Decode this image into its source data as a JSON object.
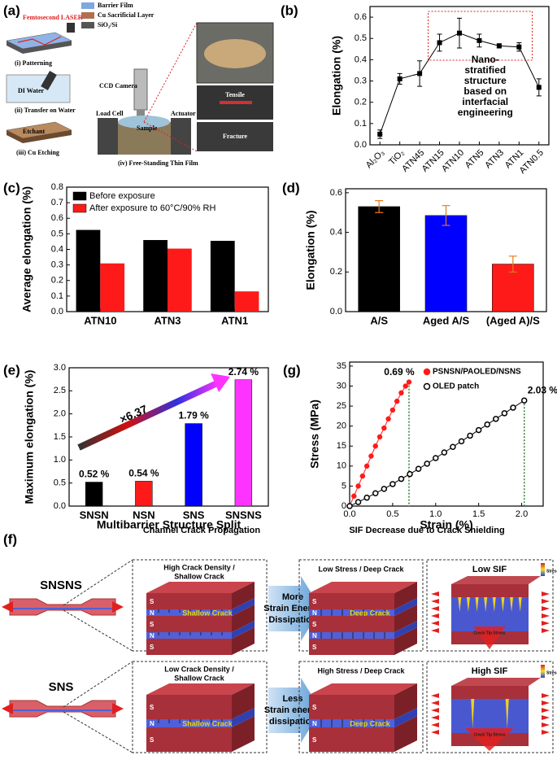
{
  "figure_a": {
    "label": "(a)",
    "laser": "Femtosecond LASER",
    "steps": [
      "(i) Patterning",
      "(ii) Transfer on Water",
      "(iii) Cu Etching",
      "(iv) Free-Standing Thin Film"
    ],
    "di_water": "DI Water",
    "etchant": "Etchant",
    "legend": [
      "Barrier Film",
      "Cu Sacrificial Layer",
      "SiO₂/Si"
    ],
    "parts": [
      "CCD Camera",
      "Load Cell",
      "Actuator",
      "Sample"
    ],
    "photo_labels": [
      "Tensile",
      "Fracture"
    ]
  },
  "chart_data": [
    {
      "type": "line",
      "label": "(b)",
      "y_label": "Elongation (%)",
      "categories": [
        "Al₂O₃",
        "TiO₂",
        "ATN45",
        "ATN15",
        "ATN10",
        "ATN5",
        "ATN3",
        "ATN1",
        "ATN0.5"
      ],
      "values": [
        0.05,
        0.31,
        0.335,
        0.48,
        0.525,
        0.49,
        0.465,
        0.46,
        0.27
      ],
      "errors": [
        0.02,
        0.025,
        0.06,
        0.04,
        0.07,
        0.03,
        0.01,
        0.02,
        0.04
      ],
      "color": "#000000",
      "ylim": [
        0,
        0.65
      ],
      "yticks": [
        {
          "value": 0,
          "label": "0.0"
        },
        0.1,
        0.2,
        0.3,
        0.4,
        0.5,
        0.6
      ],
      "annotation": [
        "Nano-",
        "stratified",
        "structure",
        "based on",
        "interfacial",
        "engineering"
      ]
    },
    {
      "type": "bar",
      "label": "(c)",
      "y_label": "Average elongation (%)",
      "categories": [
        "ATN10",
        "ATN3",
        "ATN1"
      ],
      "series": [
        {
          "name": "Before exposure",
          "color": "#000000",
          "values": [
            0.525,
            0.46,
            0.455
          ]
        },
        {
          "name": "After exposure to 60°C/90% RH",
          "color": "#ff1a1a",
          "values": [
            0.31,
            0.405,
            0.13
          ]
        }
      ],
      "legend": "upper left",
      "ylim": [
        0,
        0.8
      ],
      "yticks": [
        {
          "value": 0,
          "label": "0.0"
        },
        0.1,
        0.2,
        0.3,
        0.4,
        0.5,
        0.6,
        0.7,
        0.8
      ]
    },
    {
      "type": "bar",
      "label": "(d)",
      "y_label": "Elongation (%)",
      "categories": [
        "A/S",
        "Aged A/S",
        "(Aged A)/S"
      ],
      "values": [
        0.53,
        0.485,
        0.24
      ],
      "errors": [
        0.03,
        0.05,
        0.04
      ],
      "colors": [
        "#000000",
        "#0000ff",
        "#ff1a1a"
      ],
      "error_color": "#e07b20",
      "ylim": [
        0,
        0.62
      ],
      "yticks": [
        {
          "value": 0,
          "label": "0.0"
        },
        0.2,
        0.4,
        0.6
      ]
    },
    {
      "type": "bar",
      "label": "(e)",
      "y_label": "Maximum elongation (%)",
      "x_label": "Multibarrier Structure Split",
      "categories": [
        "SNSN",
        "NSN",
        "SNS",
        "SNSNS"
      ],
      "values": [
        0.52,
        0.54,
        1.79,
        2.74
      ],
      "value_labels": [
        "0.52 %",
        "0.54 %",
        "1.79 %",
        "2.74 %"
      ],
      "colors": [
        "#000000",
        "#ff1a1a",
        "#0000ff",
        "#ff33ff"
      ],
      "ylim": [
        0,
        3.0
      ],
      "yticks": [
        {
          "value": 0,
          "label": "0.0"
        },
        0.5,
        {
          "value": 1,
          "label": "1.0"
        },
        1.5,
        {
          "value": 2,
          "label": "2.0"
        },
        2.5,
        {
          "value": 3,
          "label": "3.0"
        }
      ],
      "annotation": "×6.37"
    },
    {
      "type": "scatter",
      "label": "(g)",
      "y_label": "Stress (MPa)",
      "x_label": "Strain (%)",
      "series": [
        {
          "name": "PSNSN/PAOLED/NSNS",
          "color": "#ff1a1a",
          "x": [
            0,
            0.05,
            0.1,
            0.15,
            0.2,
            0.25,
            0.3,
            0.35,
            0.4,
            0.45,
            0.5,
            0.55,
            0.6,
            0.65,
            0.69
          ],
          "values": [
            0,
            2.5,
            5,
            7.5,
            10,
            12.5,
            15,
            17.3,
            19.5,
            21.8,
            24,
            26.2,
            28.3,
            30,
            31
          ]
        },
        {
          "name": "OLED patch",
          "color": "#000000",
          "x": [
            0,
            0.1,
            0.2,
            0.3,
            0.4,
            0.5,
            0.6,
            0.7,
            0.8,
            0.9,
            1.0,
            1.1,
            1.2,
            1.3,
            1.4,
            1.5,
            1.6,
            1.7,
            1.8,
            1.9,
            2.03
          ],
          "values": [
            0,
            1.0,
            2.1,
            3.2,
            4.3,
            5.5,
            6.8,
            8.0,
            9.3,
            10.6,
            12.0,
            13.4,
            14.8,
            16.2,
            17.6,
            19.0,
            20.4,
            21.8,
            23.2,
            24.6,
            26.4
          ]
        }
      ],
      "point_labels": [
        "0.69 %",
        "2.03 %"
      ],
      "drop_color": "#2e7d32",
      "legend": "upper left",
      "xlim": [
        0,
        2.25
      ],
      "ylim": [
        0,
        36
      ],
      "xticks": [
        {
          "value": 0,
          "label": "0.0"
        },
        0.5,
        {
          "value": 1,
          "label": "1.0"
        },
        1.5,
        {
          "value": 2,
          "label": "2.0"
        }
      ],
      "yticks": [
        0,
        5,
        10,
        15,
        20,
        25,
        30,
        35
      ]
    }
  ],
  "figure_f": {
    "label": "(f)",
    "headers": [
      "Channel Crack Propagation",
      "SIF Decrease due to Crack Shielding"
    ],
    "stress": "Stress",
    "crack_tip": "Crack Tip Stress",
    "rows": [
      {
        "name": "SNSNS",
        "box1": [
          "High Crack Density /",
          "Shallow Crack"
        ],
        "crack1": "Shallow Crack",
        "arrow": [
          "More",
          "Strain Energy",
          "Dissipation"
        ],
        "box2": "Low Stress / Deep Crack",
        "crack2": "Deep Crack",
        "sif": "Low SIF",
        "layers": [
          "S",
          "N",
          "S",
          "N",
          "S"
        ]
      },
      {
        "name": "SNS",
        "box1": [
          "Low Crack Density /",
          "Shallow Crack"
        ],
        "crack1": "Shallow Crack",
        "arrow": [
          "Less",
          "Strain energy",
          "dissipation"
        ],
        "box2": "High Stress / Deep Crack",
        "crack2": "Deep Crack",
        "sif": "High SIF",
        "layers": [
          "S",
          "N",
          "S"
        ]
      }
    ]
  }
}
